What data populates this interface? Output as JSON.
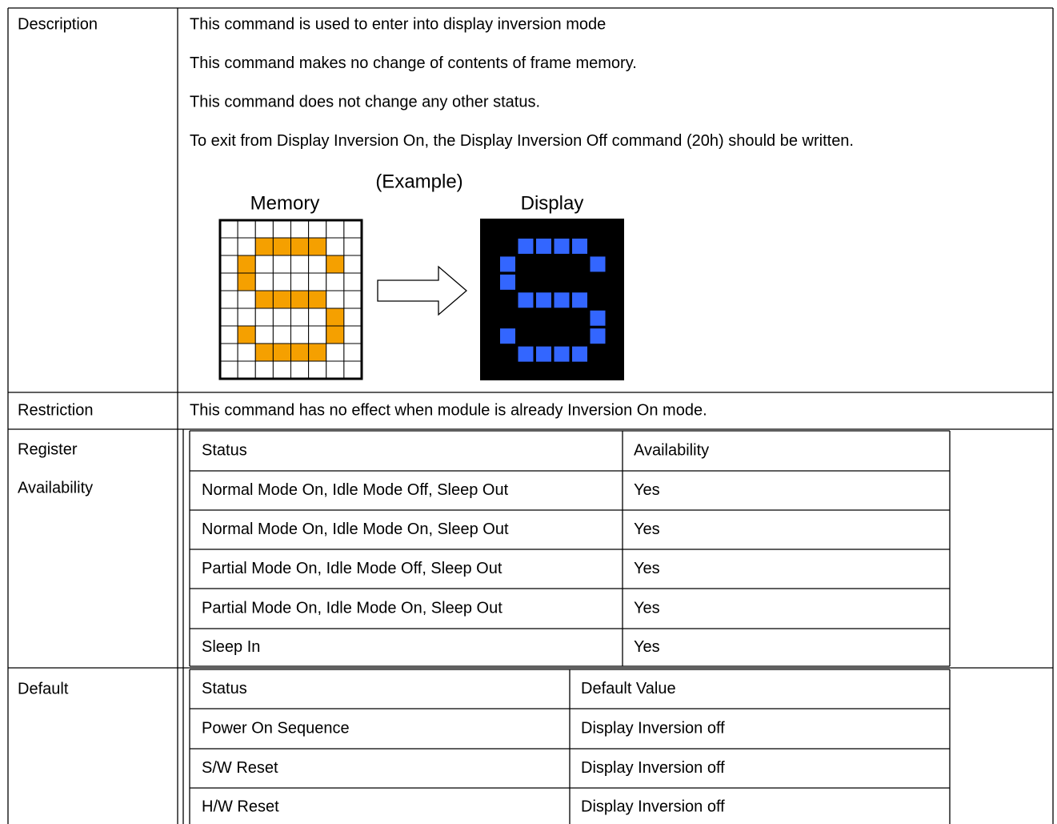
{
  "description": {
    "label": "Description",
    "lines": [
      "This command is used to enter into display inversion mode",
      "This command makes no change of contents of frame memory.",
      "This command does not change any other status.",
      "To exit from Display Inversion On, the Display Inversion Off command (20h) should be written."
    ],
    "example": {
      "caption": "(Example)",
      "left_label": "Memory",
      "right_label": "Display"
    }
  },
  "restriction": {
    "label": "Restriction",
    "text": "This command has no effect when module is already Inversion On mode."
  },
  "register_availability": {
    "label": [
      "Register",
      "Availability"
    ],
    "table": {
      "header": [
        "Status",
        "Availability"
      ],
      "rows": [
        [
          "Normal Mode On, Idle Mode Off, Sleep Out",
          "Yes"
        ],
        [
          "Normal Mode On, Idle Mode On, Sleep Out",
          "Yes"
        ],
        [
          "Partial Mode On, Idle Mode Off, Sleep Out",
          "Yes"
        ],
        [
          "Partial Mode On, Idle Mode On, Sleep Out",
          "Yes"
        ],
        [
          "Sleep In",
          "Yes"
        ]
      ]
    }
  },
  "default": {
    "label": "Default",
    "table": {
      "header": [
        "Status",
        "Default Value"
      ],
      "rows": [
        [
          "Power On Sequence",
          "Display Inversion off"
        ],
        [
          "S/W Reset",
          "Display Inversion off"
        ],
        [
          "H/W Reset",
          "Display Inversion off"
        ]
      ]
    }
  }
}
